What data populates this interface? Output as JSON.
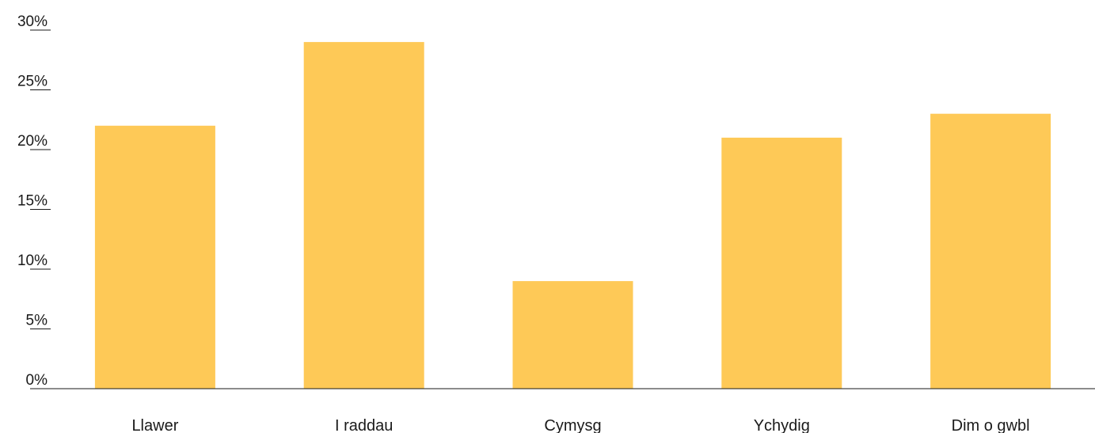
{
  "chart_data": {
    "type": "bar",
    "categories": [
      "Llawer",
      "I raddau",
      "Cymysg",
      "Ychydig",
      "Dim o gwbl"
    ],
    "values": [
      22,
      29,
      9,
      21,
      23
    ],
    "yticks": [
      "0%",
      "5%",
      "10%",
      "15%",
      "20%",
      "25%",
      "30%"
    ],
    "ylim": [
      0,
      30
    ],
    "title": "",
    "xlabel": "",
    "ylabel": "",
    "grid": false,
    "bar_color": "#fec957",
    "axis_color": "#1a1a1a"
  }
}
